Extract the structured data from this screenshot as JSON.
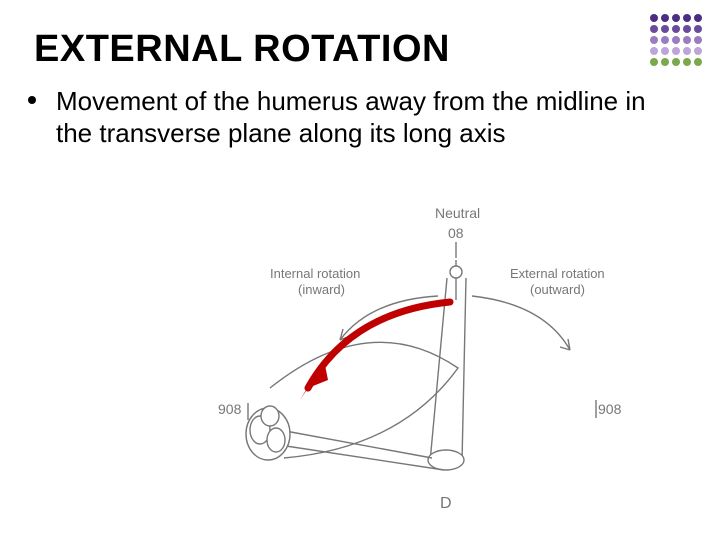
{
  "title": "EXTERNAL ROTATION",
  "bullet": "Movement of the humerus away from the midline in the transverse plane along its long axis",
  "diagram": {
    "labels": {
      "neutral": "Neutral",
      "neutral_angle": "08",
      "internal_top": "Internal rotation",
      "internal_bottom": "(inward)",
      "external_top": "External rotation",
      "external_bottom": "(outward)",
      "left_value": "908",
      "right_value": "908",
      "panel": "D"
    },
    "colors": {
      "line": "#777777",
      "text": "#777777",
      "arrow": "#c00000",
      "bg": "#ffffff"
    },
    "stroke_width": 1.4,
    "arrow_stroke_width": 7,
    "text_fontsize": 13
  },
  "decorations": {
    "dotgrid": {
      "rows": 5,
      "cols": 5,
      "row_colors": [
        "#4b2e83",
        "#6a4a9b",
        "#9a7cc0",
        "#bca6d8",
        "#7aa84a"
      ]
    }
  }
}
